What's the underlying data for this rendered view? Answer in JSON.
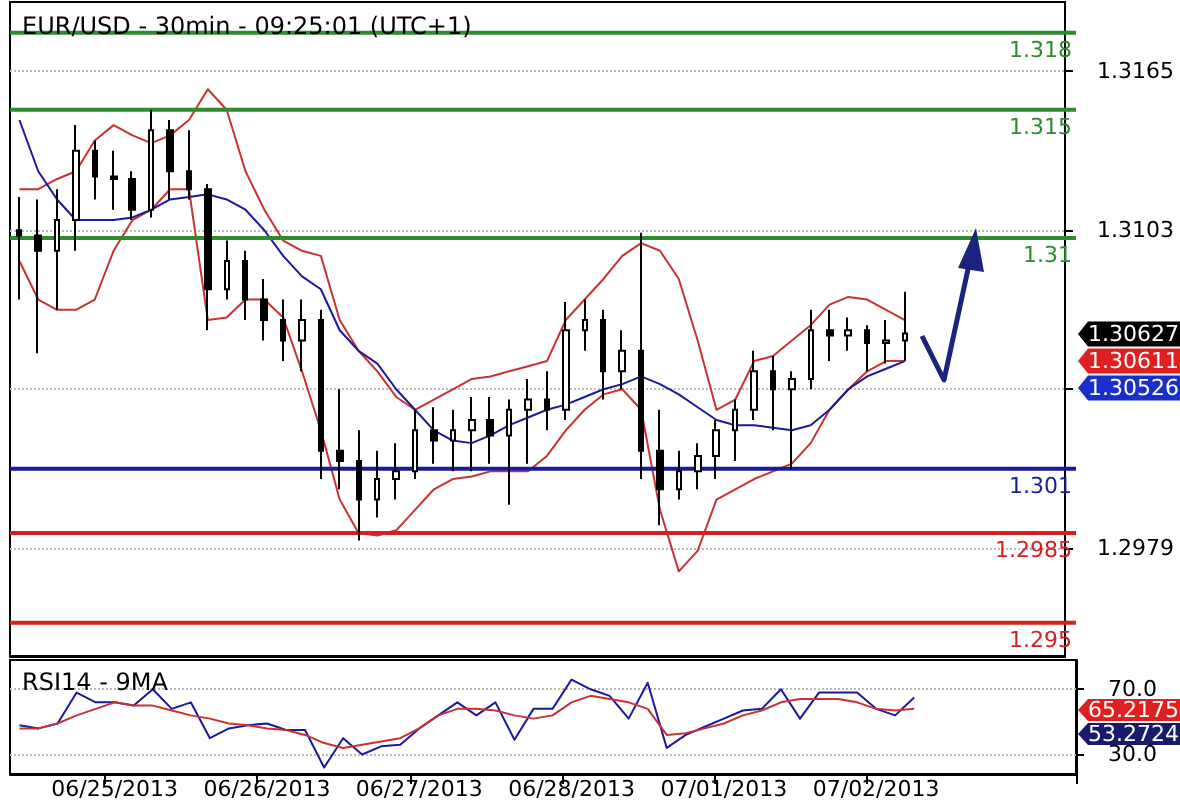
{
  "chart_data": [
    {
      "type": "candlestick",
      "title": "EUR/USD - 30min - 09:25:01 (UTC+1)",
      "color": "#000000",
      "categories": [
        null,
        null,
        null,
        null,
        null,
        null,
        null,
        null,
        null,
        null,
        null,
        null,
        null,
        null,
        null,
        null,
        null,
        null,
        null,
        null,
        null,
        null,
        null,
        null,
        null,
        null,
        null,
        null,
        null,
        null,
        null,
        null,
        null,
        null,
        null,
        null,
        null,
        null,
        null,
        null,
        null,
        null,
        null,
        null,
        null,
        null,
        null,
        null,
        null,
        null,
        null,
        null,
        null,
        null,
        null,
        null
      ],
      "ohlc": [
        [
          1.3103,
          1.3116,
          1.3076,
          1.3101
        ],
        [
          1.3101,
          1.3115,
          1.3055,
          1.3095
        ],
        [
          1.3095,
          1.3119,
          1.3072,
          1.3107
        ],
        [
          1.3107,
          1.3144,
          1.3095,
          1.3134
        ],
        [
          1.3134,
          1.3138,
          1.3115,
          1.3124
        ],
        [
          1.3124,
          1.3134,
          1.3111,
          1.3123
        ],
        [
          1.3123,
          1.3126,
          1.3107,
          1.3111
        ],
        [
          1.3111,
          1.315,
          1.3108,
          1.3142
        ],
        [
          1.3142,
          1.3146,
          1.3115,
          1.3126
        ],
        [
          1.3126,
          1.3142,
          1.3115,
          1.3119
        ],
        [
          1.3119,
          1.3121,
          1.3064,
          1.308
        ],
        [
          1.308,
          1.3099,
          1.3076,
          1.3091
        ],
        [
          1.3091,
          1.3095,
          1.3068,
          1.3076
        ],
        [
          1.3076,
          1.3084,
          1.306,
          1.3068
        ],
        [
          1.3068,
          1.3076,
          1.3052,
          1.306
        ],
        [
          1.306,
          1.3076,
          1.3048,
          1.3068
        ],
        [
          1.3068,
          1.3072,
          1.3006,
          1.3017
        ],
        [
          1.3017,
          1.3041,
          1.3002,
          1.3013
        ],
        [
          1.3013,
          1.3025,
          1.2982,
          1.2998
        ],
        [
          1.2998,
          1.3017,
          1.2991,
          1.3006
        ],
        [
          1.3006,
          1.302,
          1.2998,
          1.3009
        ],
        [
          1.3009,
          1.3033,
          1.3006,
          1.3025
        ],
        [
          1.3025,
          1.3034,
          1.3012,
          1.3021
        ],
        [
          1.3021,
          1.3033,
          1.3009,
          1.3025
        ],
        [
          1.3025,
          1.3038,
          1.3009,
          1.3029
        ],
        [
          1.3029,
          1.3038,
          1.3012,
          1.3023
        ],
        [
          1.3023,
          1.3037,
          1.2996,
          1.3033
        ],
        [
          1.3033,
          1.3045,
          1.3012,
          1.3037
        ],
        [
          1.3037,
          1.3048,
          1.3025,
          1.3033
        ],
        [
          1.3033,
          1.3075,
          1.3029,
          1.3064
        ],
        [
          1.3064,
          1.3076,
          1.3056,
          1.3068
        ],
        [
          1.3068,
          1.3072,
          1.3037,
          1.3048
        ],
        [
          1.3048,
          1.3064,
          1.3041,
          1.3056
        ],
        [
          1.3056,
          1.3102,
          1.3006,
          1.3017
        ],
        [
          1.3017,
          1.3033,
          1.2988,
          1.3002
        ],
        [
          1.3002,
          1.3017,
          1.2998,
          1.3009
        ],
        [
          1.3009,
          1.302,
          1.3002,
          1.3015
        ],
        [
          1.3015,
          1.3029,
          1.3006,
          1.3025
        ],
        [
          1.3025,
          1.3037,
          1.3013,
          1.3033
        ],
        [
          1.3033,
          1.3056,
          1.3029,
          1.3048
        ],
        [
          1.3048,
          1.3054,
          1.3025,
          1.3041
        ],
        [
          1.3041,
          1.3048,
          1.301,
          1.3045
        ],
        [
          1.3045,
          1.3072,
          1.3041,
          1.3064
        ],
        [
          1.3064,
          1.3072,
          1.3052,
          1.3062
        ],
        [
          1.3062,
          1.3069,
          1.3056,
          1.3064
        ],
        [
          1.3064,
          1.3066,
          1.3048,
          1.3059
        ],
        [
          1.3059,
          1.3068,
          1.3051,
          1.306
        ],
        [
          1.306,
          1.3079,
          1.3052,
          1.30627
        ],
        null,
        null,
        null,
        null,
        null,
        null,
        null,
        null
      ],
      "series": [
        {
          "type": "line",
          "color": "#c83232",
          "values": [
            1.3119,
            1.3119,
            1.3123,
            1.3126,
            1.3138,
            1.3144,
            1.314,
            1.3137,
            1.314,
            1.3146,
            1.3158,
            1.315,
            1.3126,
            1.3111,
            1.3099,
            1.3095,
            1.3093,
            1.3068,
            1.3056,
            1.3048,
            1.3038,
            1.3033,
            1.3037,
            1.3041,
            1.3045,
            1.3046,
            1.3048,
            1.305,
            1.3052,
            1.3068,
            1.3076,
            1.3084,
            1.3093,
            1.3098,
            1.3095,
            1.3084,
            1.306,
            1.3033,
            1.3037,
            1.3052,
            1.3054,
            1.306,
            1.3066,
            1.3074,
            1.3077,
            1.3076,
            1.3072,
            1.3068,
            null,
            null,
            null,
            null,
            null,
            null,
            null,
            null
          ]
        },
        {
          "type": "line",
          "color": "#c83232",
          "values": [
            1.3091,
            1.3076,
            1.3072,
            1.3072,
            1.3076,
            1.3095,
            1.3107,
            1.3111,
            1.3119,
            1.3119,
            1.3068,
            1.3069,
            1.3076,
            1.3076,
            1.3069,
            1.3048,
            1.3025,
            1.2998,
            1.2985,
            1.2984,
            1.2986,
            1.2994,
            1.3002,
            1.3006,
            1.3007,
            1.3009,
            1.3009,
            1.3009,
            1.3015,
            1.3025,
            1.3033,
            1.3039,
            1.3041,
            1.3033,
            1.2994,
            1.297,
            1.2978,
            1.2998,
            1.3002,
            1.3006,
            1.3009,
            1.3012,
            1.302,
            1.3033,
            1.3041,
            1.3048,
            1.3052,
            1.3052,
            null,
            null,
            null,
            null,
            null,
            null,
            null,
            null
          ]
        },
        {
          "type": "line",
          "color": "#1a1a9c",
          "values": [
            1.3146,
            1.3126,
            1.3115,
            1.3107,
            1.3107,
            1.3107,
            1.3108,
            1.3111,
            1.3115,
            1.3116,
            1.3117,
            1.3115,
            1.3111,
            1.3103,
            1.3093,
            1.3085,
            1.308,
            1.3064,
            1.3056,
            1.3051,
            1.3041,
            1.3033,
            1.3025,
            1.3021,
            1.302,
            1.3023,
            1.3027,
            1.303,
            1.3033,
            1.3035,
            1.3038,
            1.3041,
            1.3043,
            1.3046,
            1.3043,
            1.3039,
            1.3034,
            1.3029,
            1.3027,
            1.3027,
            1.3026,
            1.3025,
            1.3027,
            1.3033,
            1.3041,
            1.3046,
            1.3049,
            1.3052,
            null,
            null,
            null,
            null,
            null,
            null,
            null,
            null
          ]
        }
      ],
      "ylim": [
        1.2937,
        1.3192
      ],
      "yticks": [
        1.3165,
        1.3103,
        {
          "value": 1.3041,
          "label": null
        },
        1.2979
      ],
      "grid": "y",
      "tick_labels": "y",
      "ref_lines": [
        {
          "axis": "y",
          "value": 1.318,
          "label": "1.318",
          "color": "#2e8b2e"
        },
        {
          "axis": "y",
          "value": 1.315,
          "label": "1.315",
          "color": "#2e8b2e"
        },
        {
          "axis": "y",
          "value": 1.31,
          "label": "1.31",
          "color": "#2e8b2e"
        },
        {
          "axis": "y",
          "value": 1.301,
          "label": "1.301",
          "color": "#1a1a9c"
        },
        {
          "axis": "y",
          "value": 1.2985,
          "label": "1.2985",
          "color": "#d42020"
        },
        {
          "axis": "y",
          "value": 1.295,
          "label": "1.295",
          "color": "#d42020"
        }
      ],
      "annotations": [
        "1.30627",
        "1.30611",
        "1.30526"
      ]
    },
    {
      "type": "line",
      "title": "RSI14 - 9MA",
      "categories": [
        null,
        null,
        null,
        null,
        null,
        "06/25/2013",
        null,
        null,
        null,
        null,
        null,
        null,
        null,
        "06/26/2013",
        null,
        null,
        null,
        null,
        null,
        null,
        null,
        "06/27/2013",
        null,
        null,
        null,
        null,
        null,
        null,
        null,
        "06/28/2013",
        null,
        null,
        null,
        null,
        null,
        null,
        null,
        "07/01/2013",
        null,
        null,
        null,
        null,
        null,
        null,
        null,
        "07/02/2013",
        null,
        null,
        null,
        null,
        null,
        null,
        null,
        null,
        null,
        null
      ],
      "series": [
        {
          "color": "#1a1a9c",
          "values": [
            48,
            46,
            49,
            68,
            62,
            62,
            60,
            70,
            58,
            62,
            40,
            46,
            48,
            49,
            45,
            45,
            22,
            40,
            30,
            35,
            36,
            46,
            54,
            62,
            54,
            62,
            39,
            58,
            58,
            76,
            70,
            66,
            52,
            74,
            34,
            42,
            47,
            52,
            57,
            58,
            70,
            52,
            68,
            68,
            68,
            58,
            54,
            65,
            null,
            null,
            null,
            null,
            null,
            null,
            null,
            null
          ]
        },
        {
          "color": "#c83232",
          "values": [
            46,
            46,
            49,
            54,
            58,
            62,
            60,
            60,
            57,
            54,
            52,
            49,
            48,
            46,
            45,
            42,
            37,
            34,
            36,
            38,
            40,
            46,
            54,
            58,
            58,
            57,
            54,
            52,
            54,
            62,
            66,
            64,
            62,
            58,
            42,
            43,
            46,
            49,
            54,
            57,
            62,
            64,
            64,
            64,
            62,
            58,
            57,
            58,
            null,
            null,
            null,
            null,
            null,
            null,
            null,
            null
          ]
        }
      ],
      "ylim": [
        18,
        88
      ],
      "yticks": [
        {
          "value": 70,
          "label": "70.0"
        },
        {
          "value": 30,
          "label": "30.0"
        }
      ],
      "grid": "y",
      "annotations": [
        "65.2175",
        "53.2724"
      ]
    }
  ]
}
